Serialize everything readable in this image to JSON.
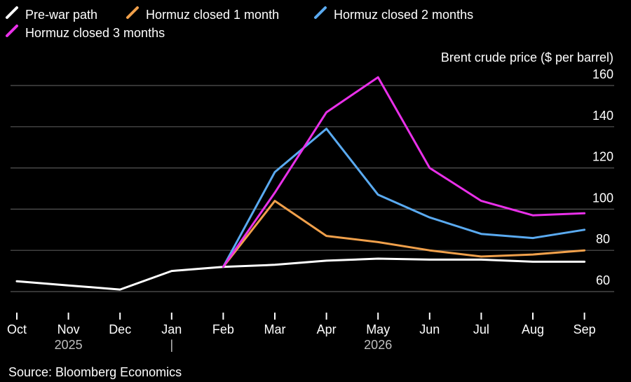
{
  "chart_data": {
    "type": "line",
    "ylabel": "Brent crude price ($ per barrel)",
    "ylim": [
      60,
      160
    ],
    "yticks": [
      60,
      80,
      100,
      120,
      140,
      160
    ],
    "grid": true,
    "legend_position": "top-left",
    "categories": [
      "Oct",
      "Nov",
      "Dec",
      "Jan",
      "Feb",
      "Mar",
      "Apr",
      "May",
      "Jun",
      "Jul",
      "Aug",
      "Sep"
    ],
    "year_labels": [
      {
        "label": "2025",
        "at": "Nov"
      },
      {
        "label": "|",
        "at": "Jan"
      },
      {
        "label": "2026",
        "at": "May"
      }
    ],
    "series": [
      {
        "name": "Pre-war path",
        "color": "#ffffff",
        "values": [
          65,
          63,
          61,
          70,
          72,
          73,
          75,
          76,
          75.5,
          75.5,
          74.5,
          74.5
        ]
      },
      {
        "name": "Hormuz closed 1 month",
        "color": "#f0a04b",
        "values": [
          null,
          null,
          null,
          null,
          72,
          104,
          87,
          84,
          80,
          77,
          78,
          80
        ]
      },
      {
        "name": "Hormuz closed 2 months",
        "color": "#5aaaf0",
        "values": [
          null,
          null,
          null,
          null,
          72,
          118,
          139,
          107,
          96,
          88,
          86,
          90
        ]
      },
      {
        "name": "Hormuz closed 3 months",
        "color": "#e930e9",
        "values": [
          null,
          null,
          null,
          null,
          72,
          108,
          147,
          164,
          120,
          104,
          97,
          98
        ]
      }
    ]
  },
  "source": "Source: Bloomberg Economics"
}
